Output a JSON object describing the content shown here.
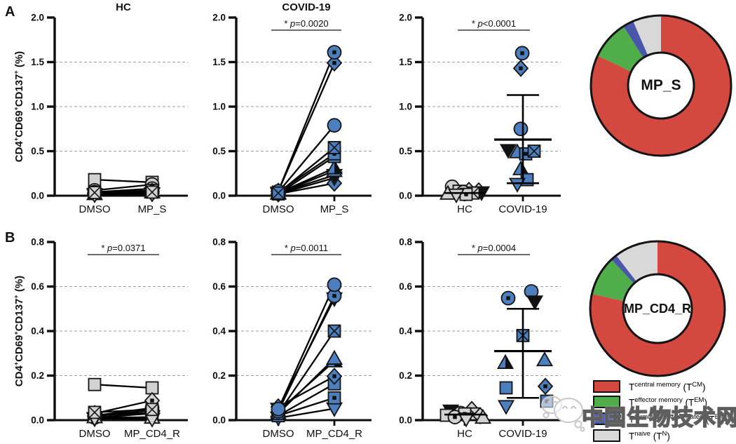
{
  "figure": {
    "panel_a_label": "A",
    "panel_b_label": "B",
    "col1_title": "HC",
    "col2_title": "COVID-19",
    "ylabel": {
      "seg1": "CD4",
      "sup1": "+",
      "seg2": "CD69",
      "sup2": "+",
      "seg3": "CD137",
      "sup3": "+",
      "seg4": " (%)"
    },
    "watermark_text": "中国生物技术网"
  },
  "legend": {
    "entries": [
      {
        "color": "#d3483f",
        "t": "T",
        "desc": "central memory",
        "open": " (T",
        "abbr": "CM",
        "close": ")"
      },
      {
        "color": "#4fae4a",
        "t": "T",
        "desc": "effector memory",
        "open": " (T",
        "abbr": "EM",
        "close": ")"
      },
      {
        "color": "#4a57a8",
        "t": "T",
        "desc": "terminally differentiated",
        "open": " (T",
        "abbr": "EMRA",
        "close": ")"
      },
      {
        "color": "#d8d8d8",
        "t": "T",
        "desc": "naive",
        "open": " (T",
        "abbr": "N",
        "close": ")"
      }
    ]
  },
  "chart_data": [
    {
      "type": "paired-scatter",
      "panel": "A",
      "title": "HC",
      "categories": [
        "DMSO",
        "MP_S"
      ],
      "ylim": [
        0,
        2.0
      ],
      "yticks": [
        "0.0",
        "0.5",
        "1.0",
        "1.5",
        "2.0"
      ],
      "grid": [
        0.5,
        1.0,
        1.5
      ],
      "marker_color": "#d2d2d2",
      "pvalue": null,
      "pairs": [
        {
          "marker": "square",
          "values": [
            0.18,
            0.15
          ]
        },
        {
          "marker": "circle",
          "values": [
            0.06,
            0.125
          ]
        },
        {
          "marker": "circle-dot",
          "values": [
            0.04,
            0.08
          ]
        },
        {
          "marker": "square-dot",
          "values": [
            0.03,
            0.06
          ]
        },
        {
          "marker": "diamond",
          "values": [
            0.03,
            0.05
          ]
        },
        {
          "marker": "triangle-up",
          "values": [
            0.02,
            0.04
          ]
        },
        {
          "marker": "diamond-dot",
          "values": [
            0.02,
            0.03
          ]
        },
        {
          "marker": "triangle-down-filled",
          "values": [
            0.015,
            0.025
          ]
        },
        {
          "marker": "triangle-down",
          "values": [
            0.01,
            0.02
          ]
        },
        {
          "marker": "square-x",
          "values": [
            0.035,
            0.04
          ]
        }
      ]
    },
    {
      "type": "paired-scatter",
      "panel": "A",
      "title": "COVID-19",
      "categories": [
        "DMSO",
        "MP_S"
      ],
      "ylim": [
        0,
        2.0
      ],
      "yticks": [
        "0.0",
        "0.5",
        "1.0",
        "1.5",
        "2.0"
      ],
      "grid": [
        0.5,
        1.0,
        1.5
      ],
      "marker_color": "#4d7fbe",
      "pvalue": {
        "star": "*",
        "p": "p",
        "rest": "=0.0020"
      },
      "pairs": [
        {
          "marker": "diamond",
          "values": [
            0.02,
            0.14
          ]
        },
        {
          "marker": "triangle-down",
          "values": [
            0.02,
            0.2
          ]
        },
        {
          "marker": "triangle-down-filled",
          "values": [
            0.03,
            0.23
          ]
        },
        {
          "marker": "triangle-up",
          "values": [
            0.025,
            0.28
          ]
        },
        {
          "marker": "triangle-up-half",
          "values": [
            0.03,
            0.31
          ]
        },
        {
          "marker": "square",
          "values": [
            0.02,
            0.44
          ]
        },
        {
          "marker": "square-dot",
          "values": [
            0.04,
            0.47
          ]
        },
        {
          "marker": "circle",
          "values": [
            0.04,
            0.79
          ]
        },
        {
          "marker": "diamond-dot",
          "values": [
            0.05,
            1.49
          ]
        },
        {
          "marker": "circle-dot",
          "values": [
            0.05,
            1.61
          ]
        },
        {
          "marker": "square-x",
          "values": [
            0.03,
            0.54
          ]
        }
      ]
    },
    {
      "type": "group-scatter",
      "panel": "A",
      "categories": [
        "HC",
        "COVID-19"
      ],
      "ylim": [
        0,
        2.0
      ],
      "yticks": [
        "0.0",
        "0.5",
        "1.0",
        "1.5",
        "2.0"
      ],
      "grid": [
        0.5,
        1.0,
        1.5
      ],
      "pvalue": {
        "star": "*",
        "p": "p",
        "rest": "<0.0001"
      },
      "groups": [
        {
          "label": "HC",
          "color": "#d2d2d2",
          "mean": 0.03,
          "points": [
            {
              "marker": "circle",
              "value": 0.1,
              "dx": -18
            },
            {
              "marker": "diamond",
              "value": 0.06,
              "dx": 6
            },
            {
              "marker": "diamond-dot",
              "value": 0.055,
              "dx": 20
            },
            {
              "marker": "square",
              "value": 0.05,
              "dx": -8
            },
            {
              "marker": "circle-dot",
              "value": 0.04,
              "dx": -2
            },
            {
              "marker": "triangle-down-filled",
              "value": 0.035,
              "dx": 24
            },
            {
              "marker": "square-x",
              "value": 0.03,
              "dx": 12
            },
            {
              "marker": "triangle-up",
              "value": 0.025,
              "dx": -24
            },
            {
              "marker": "square-dot",
              "value": 0.015,
              "dx": 2
            },
            {
              "marker": "triangle-down",
              "value": 0.01,
              "dx": -12
            }
          ]
        },
        {
          "label": "COVID-19",
          "color": "#4d7fbe",
          "errorbar": {
            "mean": 0.63,
            "upper": 1.13,
            "lower": 0.14
          },
          "points": [
            {
              "marker": "triangle-down-filled",
              "value": 0.51,
              "dx": -21
            },
            {
              "marker": "triangle-up",
              "value": 0.49,
              "dx": -8
            },
            {
              "marker": "square-dot",
              "value": 0.47,
              "dx": 4
            },
            {
              "marker": "square-x",
              "value": 0.5,
              "dx": 16
            },
            {
              "marker": "circle",
              "value": 0.75,
              "dx": -3
            },
            {
              "marker": "diamond-dot",
              "value": 1.43,
              "dx": -3
            },
            {
              "marker": "circle-dot",
              "value": 1.6,
              "dx": -1
            },
            {
              "marker": "triangle-up-half",
              "value": 0.3,
              "dx": -3
            },
            {
              "marker": "square",
              "value": 0.18,
              "dx": 6
            },
            {
              "marker": "triangle-down",
              "value": 0.13,
              "dx": -8
            }
          ]
        }
      ]
    },
    {
      "type": "paired-scatter",
      "panel": "B",
      "title": null,
      "categories": [
        "DMSO",
        "MP_CD4_R"
      ],
      "ylim": [
        0,
        0.8
      ],
      "yticks": [
        "0.0",
        "0.2",
        "0.4",
        "0.6",
        "0.8"
      ],
      "grid": [
        0.2,
        0.4,
        0.6
      ],
      "marker_color": "#d2d2d2",
      "pvalue": {
        "star": "*",
        "p": "p",
        "rest": "=0.0371"
      },
      "pairs": [
        {
          "marker": "square",
          "values": [
            0.16,
            0.145
          ]
        },
        {
          "marker": "circle",
          "values": [
            0.02,
            0.055
          ]
        },
        {
          "marker": "circle-dot",
          "values": [
            0.012,
            0.03
          ]
        },
        {
          "marker": "square-dot",
          "values": [
            0.02,
            0.035
          ]
        },
        {
          "marker": "diamond",
          "values": [
            0.018,
            0.045
          ]
        },
        {
          "marker": "triangle-up",
          "values": [
            0.014,
            0.012
          ]
        },
        {
          "marker": "diamond-dot",
          "values": [
            0.03,
            0.088
          ]
        },
        {
          "marker": "triangle-down-filled",
          "values": [
            0.006,
            0.015
          ]
        },
        {
          "marker": "triangle-down",
          "values": [
            0.008,
            0.005
          ]
        },
        {
          "marker": "square-x",
          "values": [
            0.035,
            0.048
          ]
        }
      ]
    },
    {
      "type": "paired-scatter",
      "panel": "B",
      "title": null,
      "categories": [
        "DMSO",
        "MP_CD4_R"
      ],
      "ylim": [
        0,
        0.8
      ],
      "yticks": [
        "0.0",
        "0.2",
        "0.4",
        "0.6",
        "0.8"
      ],
      "grid": [
        0.2,
        0.4,
        0.6
      ],
      "marker_color": "#4d7fbe",
      "pvalue": {
        "star": "*",
        "p": "p",
        "rest": "=0.0011"
      },
      "pairs": [
        {
          "marker": "triangle-down",
          "values": [
            0.01,
            0.052
          ]
        },
        {
          "marker": "square-dot",
          "values": [
            0.02,
            0.1
          ]
        },
        {
          "marker": "square",
          "values": [
            0.02,
            0.163
          ]
        },
        {
          "marker": "diamond-dot",
          "values": [
            0.06,
            0.197
          ]
        },
        {
          "marker": "triangle-up-half",
          "values": [
            0.04,
            0.265
          ]
        },
        {
          "marker": "triangle-up",
          "values": [
            0.03,
            0.277
          ]
        },
        {
          "marker": "square-x",
          "values": [
            0.03,
            0.4
          ]
        },
        {
          "marker": "triangle-down-filled",
          "values": [
            0.05,
            0.546
          ]
        },
        {
          "marker": "circle-dot",
          "values": [
            0.04,
            0.558
          ]
        },
        {
          "marker": "circle",
          "values": [
            0.05,
            0.608
          ]
        }
      ]
    },
    {
      "type": "group-scatter",
      "panel": "B",
      "categories": [
        "HC",
        "COVID-19"
      ],
      "ylim": [
        0,
        0.8
      ],
      "yticks": [
        "0.0",
        "0.2",
        "0.4",
        "0.6",
        "0.8"
      ],
      "grid": [
        0.2,
        0.4,
        0.6
      ],
      "pvalue": {
        "star": "*",
        "p": "p",
        "rest": "=0.0004"
      },
      "groups": [
        {
          "label": "HC",
          "color": "#d2d2d2",
          "mean": 0.025,
          "points": [
            {
              "marker": "diamond-dot",
              "value": 0.048,
              "dx": 10
            },
            {
              "marker": "triangle-down-filled",
              "value": 0.042,
              "dx": -20
            },
            {
              "marker": "square-x",
              "value": 0.028,
              "dx": 14
            },
            {
              "marker": "circle",
              "value": 0.032,
              "dx": -6
            },
            {
              "marker": "square",
              "value": 0.022,
              "dx": -26
            },
            {
              "marker": "square-dot",
              "value": 0.028,
              "dx": 0
            },
            {
              "marker": "diamond",
              "value": 0.02,
              "dx": 22
            },
            {
              "marker": "triangle-up",
              "value": 0.012,
              "dx": 26
            },
            {
              "marker": "circle-dot",
              "value": 0.014,
              "dx": -14
            },
            {
              "marker": "triangle-down",
              "value": 0.006,
              "dx": 2
            }
          ]
        },
        {
          "label": "COVID-19",
          "color": "#4d7fbe",
          "errorbar": {
            "mean": 0.31,
            "upper": 0.5,
            "lower": 0.1
          },
          "points": [
            {
              "marker": "circle-dot",
              "value": 0.548,
              "dx": -21
            },
            {
              "marker": "circle",
              "value": 0.578,
              "dx": 12
            },
            {
              "marker": "triangle-down-filled",
              "value": 0.532,
              "dx": 17
            },
            {
              "marker": "square-x",
              "value": 0.38,
              "dx": 0
            },
            {
              "marker": "triangle-up-half",
              "value": 0.258,
              "dx": -25
            },
            {
              "marker": "triangle-up",
              "value": 0.27,
              "dx": 31
            },
            {
              "marker": "square",
              "value": 0.145,
              "dx": -24
            },
            {
              "marker": "diamond-dot",
              "value": 0.152,
              "dx": 32
            },
            {
              "marker": "square-dot",
              "value": 0.085,
              "dx": 34
            },
            {
              "marker": "triangle-down",
              "value": 0.062,
              "dx": -24
            }
          ]
        }
      ]
    },
    {
      "type": "donut",
      "label": "MP_S",
      "slices": [
        {
          "name": "T central memory (TCM)",
          "value": 82,
          "color": "#d3483f"
        },
        {
          "name": "T effector memory (TEM)",
          "value": 9,
          "color": "#4fae4a"
        },
        {
          "name": "T terminally differentiated (TEMRA)",
          "value": 2.5,
          "color": "#4a57a8"
        },
        {
          "name": "T naive (TN)",
          "value": 6.5,
          "color": "#d8d8d8"
        }
      ]
    },
    {
      "type": "donut",
      "label": "MP_CD4_R",
      "slices": [
        {
          "name": "T central memory (TCM)",
          "value": 78.5,
          "color": "#d3483f"
        },
        {
          "name": "T effector memory (TEM)",
          "value": 9.5,
          "color": "#4fae4a"
        },
        {
          "name": "T terminally differentiated (TEMRA)",
          "value": 1.5,
          "color": "#4a57a8"
        },
        {
          "name": "T naive (TN)",
          "value": 10.5,
          "color": "#d8d8d8"
        }
      ]
    }
  ]
}
